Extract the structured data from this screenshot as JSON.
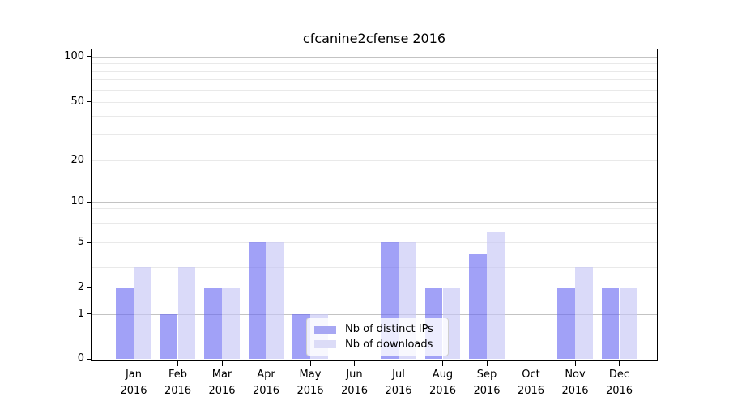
{
  "chart_data": {
    "type": "bar",
    "title": "cfcanine2cfense 2016",
    "categories": [
      "Jan 2016",
      "Feb 2016",
      "Mar 2016",
      "Apr 2016",
      "May 2016",
      "Jun 2016",
      "Jul 2016",
      "Aug 2016",
      "Sep 2016",
      "Oct 2016",
      "Nov 2016",
      "Dec 2016"
    ],
    "x_tick_line1": [
      "Jan",
      "Feb",
      "Mar",
      "Apr",
      "May",
      "Jun",
      "Jul",
      "Aug",
      "Sep",
      "Oct",
      "Nov",
      "Dec"
    ],
    "x_tick_line2": "2016",
    "series": [
      {
        "name": "Nb of distinct IPs",
        "values": [
          2,
          1,
          2,
          5,
          1,
          0,
          5,
          2,
          4,
          0,
          2,
          2
        ],
        "fill": "rgba(104,104,242,0.62)",
        "legend_color": "#a7a7f3"
      },
      {
        "name": "Nb of downloads",
        "values": [
          3,
          3,
          2,
          5,
          1,
          0,
          5,
          2,
          6,
          0,
          3,
          2
        ],
        "fill": "rgba(198,198,246,0.65)",
        "legend_color": "#dcdcf7"
      }
    ],
    "y_ticks": [
      0,
      1,
      2,
      5,
      10,
      20,
      50,
      100
    ],
    "y_major_gridlines": [
      1,
      10,
      100
    ],
    "y_minor_gridlines": [
      2,
      3,
      4,
      5,
      6,
      7,
      8,
      9,
      20,
      30,
      40,
      50,
      60,
      70,
      80,
      90
    ],
    "ylim": [
      0,
      100
    ],
    "scale": "symlog",
    "grid": true,
    "legend_position": "lower-center-inside",
    "colors": {
      "major_grid": "#c3c3c3",
      "minor_grid": "#e9e9e9",
      "spine": "#000000"
    }
  }
}
